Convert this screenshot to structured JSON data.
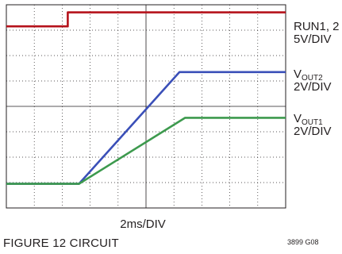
{
  "chart_data": {
    "type": "line",
    "title": "",
    "xlabel": "2ms/DIV",
    "ylabel": "",
    "grid": true,
    "divisions": {
      "x": 10,
      "y": 8
    },
    "x_units": "ms",
    "xlim": [
      0,
      20
    ],
    "series": [
      {
        "name": "RUN1, 2",
        "name_main": "RUN1, 2",
        "name_sub": "",
        "scale": "5V/DIV",
        "color": "#b5121b",
        "points": [
          [
            0,
            7.15
          ],
          [
            4.4,
            7.15
          ],
          [
            4.4,
            7.7
          ],
          [
            20,
            7.7
          ]
        ]
      },
      {
        "name": "VOUT2",
        "name_main": "V",
        "name_sub": "OUT2",
        "scale": "2V/DIV",
        "color": "#3a4fb8",
        "points": [
          [
            0,
            0.95
          ],
          [
            5.2,
            0.95
          ],
          [
            12.4,
            5.35
          ],
          [
            20,
            5.35
          ]
        ]
      },
      {
        "name": "VOUT1",
        "name_main": "V",
        "name_sub": "OUT1",
        "scale": "2V/DIV",
        "color": "#3d9a4e",
        "points": [
          [
            0,
            0.95
          ],
          [
            5.2,
            0.95
          ],
          [
            12.8,
            3.55
          ],
          [
            20,
            3.55
          ]
        ]
      }
    ]
  },
  "footer": {
    "caption": "FIGURE 12 CIRCUIT",
    "figure_id": "3899 G08"
  }
}
